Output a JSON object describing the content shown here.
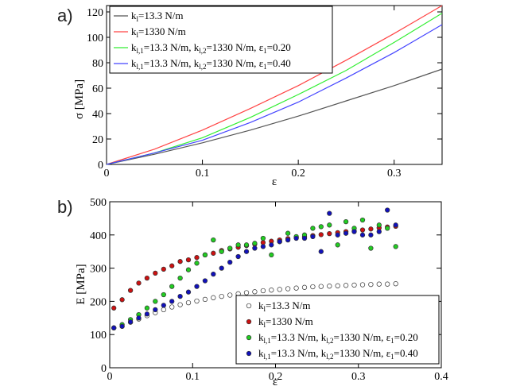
{
  "chart_data": [
    {
      "type": "line",
      "panel_label": "a)",
      "xlabel": "ε",
      "ylabel": "σ [MPa]",
      "xlim": [
        0,
        0.35
      ],
      "ylim": [
        0,
        125
      ],
      "xticks": [
        0,
        0.1,
        0.2,
        0.3
      ],
      "xtick_labels": [
        "0",
        "0.1",
        "0.2",
        "0.3"
      ],
      "yticks": [
        0,
        20,
        40,
        60,
        80,
        100,
        120
      ],
      "ytick_labels": [
        "0",
        "20",
        "40",
        "60",
        "80",
        "100",
        "120"
      ],
      "legend_position": "top-left",
      "series": [
        {
          "legend": {
            "k": "k",
            "sub1": "l",
            "val1": "=13.3 N/m"
          },
          "color": "#555555",
          "x": [
            0,
            0.05,
            0.1,
            0.15,
            0.2,
            0.25,
            0.3,
            0.35
          ],
          "y": [
            0,
            8,
            17,
            27,
            38,
            50,
            62,
            75
          ]
        },
        {
          "legend": {
            "k": "k",
            "sub1": "l",
            "val1": "=1330 N/m"
          },
          "color": "#ff4444",
          "x": [
            0,
            0.05,
            0.1,
            0.15,
            0.2,
            0.25,
            0.3,
            0.35
          ],
          "y": [
            0,
            12,
            27,
            44,
            62,
            82,
            103,
            125
          ]
        },
        {
          "legend": {
            "k": "k",
            "sub1": "l,1",
            "val1": "=13.3 N/m, ",
            "k2": "k",
            "sub2": "l,2",
            "val2": "=1330 N/m, ",
            "e": "ε",
            "sub3": "1",
            "val3": "=0.20"
          },
          "color": "#33ee33",
          "x": [
            0,
            0.05,
            0.1,
            0.15,
            0.2,
            0.25,
            0.3,
            0.35
          ],
          "y": [
            0,
            9,
            21,
            37,
            55,
            74,
            96,
            119
          ]
        },
        {
          "legend": {
            "k": "k",
            "sub1": "l,1",
            "val1": "=13.3 N/m, ",
            "k2": "k",
            "sub2": "l,2",
            "val2": "=1330 N/m, ",
            "e": "ε",
            "sub3": "1",
            "val3": "=0.40"
          },
          "color": "#4444ff",
          "x": [
            0,
            0.05,
            0.1,
            0.15,
            0.2,
            0.25,
            0.3,
            0.35
          ],
          "y": [
            0,
            9,
            19,
            33,
            49,
            68,
            88,
            110
          ]
        }
      ]
    },
    {
      "type": "scatter",
      "panel_label": "b)",
      "xlabel": "ε",
      "ylabel": "E [MPa]",
      "xlim": [
        0,
        0.4
      ],
      "ylim": [
        0,
        500
      ],
      "xticks": [
        0,
        0.1,
        0.2,
        0.3,
        0.4
      ],
      "xtick_labels": [
        "0",
        "0.1",
        "0.2",
        "0.3",
        "0.4"
      ],
      "yticks": [
        0,
        100,
        200,
        300,
        400,
        500
      ],
      "ytick_labels": [
        "0",
        "100",
        "200",
        "300",
        "400",
        "500"
      ],
      "legend_position": "bottom-right",
      "series": [
        {
          "legend": {
            "k": "k",
            "sub1": "l",
            "val1": "=13.3 N/m"
          },
          "color": "#ffffff",
          "x": [
            0.005,
            0.015,
            0.025,
            0.035,
            0.045,
            0.055,
            0.065,
            0.075,
            0.085,
            0.095,
            0.105,
            0.115,
            0.125,
            0.135,
            0.145,
            0.155,
            0.165,
            0.175,
            0.185,
            0.195,
            0.205,
            0.215,
            0.225,
            0.235,
            0.245,
            0.255,
            0.265,
            0.275,
            0.285,
            0.295,
            0.305,
            0.315,
            0.325,
            0.335,
            0.345
          ],
          "y": [
            120,
            125,
            137,
            147,
            157,
            166,
            175,
            183,
            190,
            196,
            201,
            206,
            211,
            215,
            219,
            223,
            226,
            229,
            232,
            234,
            236,
            238,
            240,
            242,
            244,
            245,
            246,
            247,
            248,
            249,
            250,
            251,
            252,
            252,
            253
          ]
        },
        {
          "legend": {
            "k": "k",
            "sub1": "l",
            "val1": "=1330 N/m"
          },
          "color": "#cc1111",
          "x": [
            0.005,
            0.015,
            0.025,
            0.035,
            0.045,
            0.055,
            0.065,
            0.075,
            0.085,
            0.095,
            0.105,
            0.115,
            0.125,
            0.135,
            0.145,
            0.155,
            0.165,
            0.175,
            0.185,
            0.195,
            0.205,
            0.215,
            0.225,
            0.235,
            0.245,
            0.255,
            0.265,
            0.275,
            0.285,
            0.295,
            0.305,
            0.315,
            0.325,
            0.335,
            0.345
          ],
          "y": [
            180,
            205,
            233,
            255,
            270,
            285,
            297,
            307,
            320,
            325,
            332,
            340,
            345,
            353,
            358,
            363,
            368,
            372,
            377,
            381,
            385,
            389,
            392,
            395,
            398,
            401,
            404,
            407,
            410,
            412,
            415,
            418,
            421,
            424,
            426
          ]
        },
        {
          "legend": {
            "k": "k",
            "sub1": "l,1",
            "val1": "=13.3 N/m, ",
            "k2": "k",
            "sub2": "l,2",
            "val2": "=1330 N/m, ",
            "e": "ε",
            "sub3": "1",
            "val3": "=0.20"
          },
          "color": "#22cc22",
          "x": [
            0.005,
            0.015,
            0.025,
            0.035,
            0.045,
            0.055,
            0.065,
            0.075,
            0.085,
            0.095,
            0.105,
            0.115,
            0.125,
            0.135,
            0.145,
            0.155,
            0.165,
            0.175,
            0.185,
            0.195,
            0.205,
            0.215,
            0.225,
            0.235,
            0.245,
            0.255,
            0.265,
            0.275,
            0.285,
            0.295,
            0.305,
            0.315,
            0.325,
            0.335,
            0.345
          ],
          "y": [
            120,
            130,
            145,
            160,
            180,
            200,
            220,
            245,
            270,
            295,
            315,
            340,
            385,
            350,
            360,
            370,
            370,
            375,
            390,
            340,
            380,
            405,
            395,
            400,
            420,
            425,
            430,
            370,
            440,
            420,
            445,
            360,
            430,
            420,
            365
          ]
        },
        {
          "legend": {
            "k": "k",
            "sub1": "l,1",
            "val1": "=13.3 N/m, ",
            "k2": "k",
            "sub2": "l,2",
            "val2": "=1330 N/m, ",
            "e": "ε",
            "sub3": "1",
            "val3": "=0.40"
          },
          "color": "#1111bb",
          "x": [
            0.005,
            0.015,
            0.025,
            0.035,
            0.045,
            0.055,
            0.065,
            0.075,
            0.085,
            0.095,
            0.105,
            0.115,
            0.125,
            0.135,
            0.145,
            0.155,
            0.165,
            0.175,
            0.185,
            0.195,
            0.205,
            0.215,
            0.225,
            0.235,
            0.245,
            0.255,
            0.265,
            0.275,
            0.285,
            0.295,
            0.305,
            0.315,
            0.325,
            0.335,
            0.345
          ],
          "y": [
            120,
            125,
            138,
            150,
            162,
            175,
            188,
            200,
            215,
            228,
            245,
            262,
            282,
            300,
            318,
            335,
            350,
            360,
            365,
            370,
            380,
            385,
            390,
            390,
            395,
            350,
            465,
            400,
            405,
            410,
            400,
            400,
            410,
            475,
            430
          ]
        }
      ]
    }
  ]
}
